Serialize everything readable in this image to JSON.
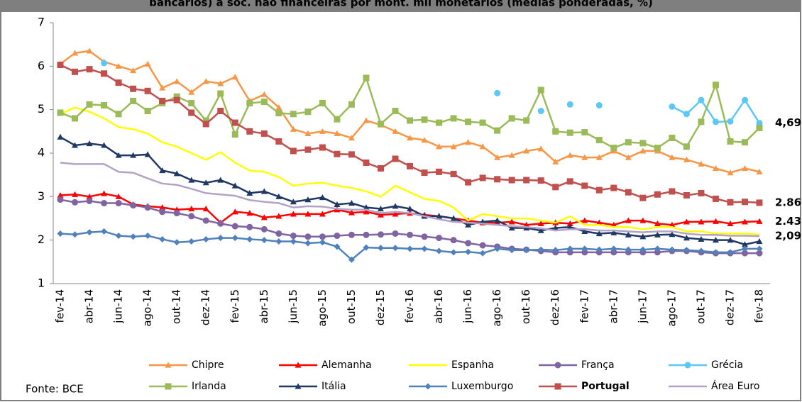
{
  "chart_data": {
    "type": "line",
    "title": "bancários) a soc. não financeiras por mont. mil monetários (médias ponderadas, %)",
    "source": "Fonte: BCE",
    "categories": [
      "fev-14",
      null,
      "abr-14",
      null,
      "jun-14",
      null,
      "ago-14",
      null,
      "out-14",
      null,
      "dez-14",
      null,
      "fev-15",
      null,
      "abr-15",
      null,
      "jun-15",
      null,
      "ago-15",
      null,
      "out-15",
      null,
      "dez-15",
      null,
      "fev-16",
      null,
      "abr-16",
      null,
      "jun-16",
      null,
      "ago-16",
      null,
      "out-16",
      null,
      "dez-16",
      null,
      "fev-17",
      null,
      "abr-17",
      null,
      "jun-17",
      null,
      "ago-17",
      null,
      "out-17",
      null,
      "dez-17",
      null,
      "fev-18"
    ],
    "ylim": [
      1,
      7
    ],
    "yticks": [
      1,
      2,
      3,
      4,
      5,
      6,
      7
    ],
    "series": [
      {
        "name": "Chipre",
        "color": "#f79646",
        "marker": "triangle",
        "values": [
          6.05,
          6.3,
          6.35,
          6.1,
          6.0,
          5.9,
          6.05,
          5.5,
          5.65,
          5.4,
          5.65,
          5.6,
          5.75,
          5.2,
          5.35,
          5.05,
          4.55,
          4.45,
          4.5,
          4.45,
          4.35,
          4.75,
          4.65,
          4.5,
          4.35,
          4.3,
          4.15,
          4.15,
          4.25,
          4.15,
          3.9,
          3.95,
          4.05,
          4.1,
          3.8,
          3.95,
          3.9,
          3.9,
          4.05,
          3.9,
          4.05,
          4.05,
          3.9,
          3.85,
          3.75,
          3.65,
          3.55,
          3.65,
          3.57
        ]
      },
      {
        "name": "Alemanha",
        "color": "#ff0000",
        "marker": "triangle",
        "end_label": "2.43",
        "values": [
          3.03,
          3.05,
          3.0,
          3.07,
          3.0,
          2.82,
          2.78,
          2.75,
          2.7,
          2.72,
          2.72,
          2.4,
          2.65,
          2.62,
          2.52,
          2.55,
          2.6,
          2.6,
          2.6,
          2.7,
          2.63,
          2.65,
          2.58,
          2.6,
          2.62,
          2.58,
          2.55,
          2.5,
          2.45,
          2.4,
          2.4,
          2.42,
          2.35,
          2.38,
          2.4,
          2.38,
          2.45,
          2.4,
          2.35,
          2.45,
          2.45,
          2.38,
          2.35,
          2.42,
          2.42,
          2.43,
          2.38,
          2.42,
          2.43
        ]
      },
      {
        "name": "Espanha",
        "color": "#ffff00",
        "marker": "none",
        "values": [
          4.9,
          5.05,
          4.95,
          4.8,
          4.6,
          4.55,
          4.45,
          4.25,
          4.15,
          4.0,
          3.85,
          4.02,
          3.78,
          3.6,
          3.57,
          3.45,
          3.25,
          3.3,
          3.32,
          3.25,
          3.2,
          3.12,
          3.0,
          3.25,
          3.1,
          2.95,
          2.9,
          2.75,
          2.45,
          2.6,
          2.55,
          2.5,
          2.5,
          2.45,
          2.4,
          2.55,
          2.35,
          2.35,
          2.3,
          2.3,
          2.25,
          2.3,
          2.3,
          2.2,
          2.2,
          2.15,
          2.15,
          2.15,
          2.13
        ]
      },
      {
        "name": "França",
        "color": "#8064a2",
        "marker": "circle",
        "values": [
          2.93,
          2.87,
          2.9,
          2.85,
          2.85,
          2.8,
          2.75,
          2.65,
          2.62,
          2.55,
          2.45,
          2.38,
          2.32,
          2.3,
          2.25,
          2.15,
          2.1,
          2.08,
          2.08,
          2.1,
          2.12,
          2.12,
          2.13,
          2.15,
          2.12,
          2.08,
          2.05,
          2.0,
          1.93,
          1.88,
          1.85,
          1.8,
          1.78,
          1.75,
          1.72,
          1.72,
          1.72,
          1.72,
          1.72,
          1.72,
          1.72,
          1.72,
          1.75,
          1.75,
          1.72,
          1.7,
          1.7,
          1.7,
          1.7
        ]
      },
      {
        "name": "Grécia",
        "color": "#5bc8f5",
        "marker": "circle",
        "end_label": "4,69",
        "values": [
          null,
          null,
          null,
          6.07,
          null,
          null,
          null,
          null,
          null,
          null,
          null,
          null,
          null,
          null,
          null,
          null,
          null,
          null,
          null,
          null,
          null,
          null,
          null,
          null,
          null,
          null,
          null,
          null,
          null,
          null,
          5.38,
          null,
          null,
          4.97,
          null,
          5.12,
          null,
          5.1,
          null,
          null,
          null,
          null,
          5.07,
          4.9,
          5.22,
          4.72,
          4.73,
          5.22,
          4.69
        ]
      },
      {
        "name": "Irlanda",
        "color": "#9bbb59",
        "marker": "square",
        "values": [
          4.93,
          4.8,
          5.12,
          5.1,
          4.9,
          5.2,
          4.97,
          5.15,
          5.3,
          5.15,
          4.75,
          5.37,
          4.43,
          5.15,
          5.18,
          4.92,
          4.9,
          4.95,
          5.15,
          4.78,
          5.12,
          5.73,
          4.67,
          4.97,
          4.75,
          4.77,
          4.7,
          4.8,
          4.72,
          4.7,
          4.52,
          4.8,
          4.75,
          5.45,
          4.5,
          4.47,
          4.48,
          4.3,
          4.12,
          4.25,
          4.23,
          4.12,
          4.35,
          4.15,
          4.72,
          5.57,
          4.27,
          4.25,
          4.58
        ]
      },
      {
        "name": "Itália",
        "color": "#1f3864",
        "marker": "triangle",
        "values": [
          4.37,
          4.18,
          4.22,
          4.18,
          3.95,
          3.95,
          3.97,
          3.6,
          3.53,
          3.38,
          3.32,
          3.38,
          3.25,
          3.08,
          3.12,
          3.0,
          2.88,
          2.93,
          2.98,
          2.82,
          2.85,
          2.75,
          2.72,
          2.78,
          2.72,
          2.55,
          2.55,
          2.5,
          2.35,
          2.42,
          2.45,
          2.28,
          2.28,
          2.22,
          2.28,
          2.3,
          2.2,
          2.15,
          2.17,
          2.12,
          2.08,
          2.12,
          2.13,
          2.05,
          2.02,
          2.0,
          2.0,
          1.9,
          1.97
        ]
      },
      {
        "name": "Luxemburgo",
        "color": "#4f81bd",
        "marker": "diamond",
        "values": [
          2.15,
          2.13,
          2.18,
          2.2,
          2.1,
          2.08,
          2.1,
          2.02,
          1.95,
          1.97,
          2.02,
          2.05,
          2.05,
          2.02,
          2.0,
          1.97,
          1.97,
          1.93,
          1.95,
          1.85,
          1.55,
          1.83,
          1.82,
          1.82,
          1.8,
          1.8,
          1.75,
          1.72,
          1.73,
          1.7,
          1.8,
          1.77,
          1.77,
          1.78,
          1.77,
          1.8,
          1.8,
          1.78,
          1.8,
          1.78,
          1.78,
          1.8,
          1.78,
          1.77,
          1.75,
          1.72,
          1.72,
          1.8,
          1.8
        ]
      },
      {
        "name": "Portugal",
        "color": "#c0504d",
        "marker": "square",
        "legend_bold": true,
        "end_label": "2.86",
        "values": [
          6.03,
          5.87,
          5.93,
          5.83,
          5.62,
          5.48,
          5.43,
          5.2,
          5.22,
          4.93,
          4.67,
          4.97,
          4.7,
          4.5,
          4.45,
          4.27,
          4.05,
          4.08,
          4.13,
          3.98,
          3.97,
          3.78,
          3.65,
          3.87,
          3.7,
          3.55,
          3.57,
          3.52,
          3.33,
          3.43,
          3.4,
          3.38,
          3.38,
          3.37,
          3.22,
          3.35,
          3.25,
          3.15,
          3.2,
          3.1,
          2.97,
          3.05,
          3.12,
          3.03,
          3.08,
          2.95,
          2.87,
          2.88,
          2.86
        ]
      },
      {
        "name": "Área Euro",
        "color": "#b3a2c7",
        "marker": "none",
        "end_label": "2,09",
        "values": [
          3.78,
          3.75,
          3.75,
          3.75,
          3.57,
          3.55,
          3.42,
          3.3,
          3.27,
          3.18,
          3.08,
          3.05,
          3.02,
          2.92,
          2.88,
          2.85,
          2.75,
          2.78,
          2.77,
          2.72,
          2.7,
          2.7,
          2.62,
          2.65,
          2.62,
          2.55,
          2.48,
          2.42,
          2.4,
          2.38,
          2.35,
          2.32,
          2.3,
          2.27,
          2.22,
          2.25,
          2.25,
          2.22,
          2.22,
          2.2,
          2.18,
          2.2,
          2.2,
          2.15,
          2.12,
          2.12,
          2.1,
          2.1,
          2.09
        ]
      }
    ]
  }
}
